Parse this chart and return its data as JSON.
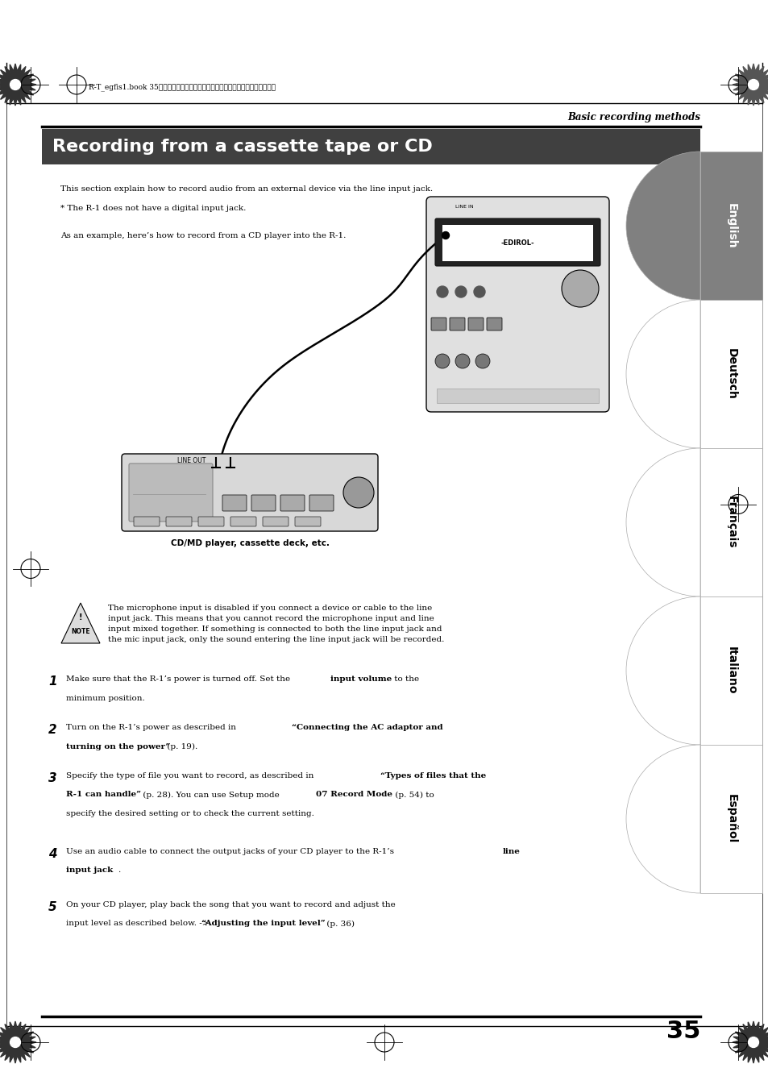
{
  "bg_color": "#ffffff",
  "page_width": 9.54,
  "page_height": 13.51,
  "header_text": "R-T_egfis1.book 35ページ　２００５年１１月１１日　金曜日　午後５時１３分",
  "section_label": "Basic recording methods",
  "title": "Recording from a cassette tape or CD",
  "title_bg": "#404040",
  "title_color": "#ffffff",
  "body_intro_1": "This section explain how to record audio from an external device via the line input jack.",
  "body_intro_2": "* The R-1 does not have a digital input jack.",
  "body_intro_3": "As an example, here’s how to record from a CD player into the R-1.",
  "caption_cd": "CD/MD player, cassette deck, etc.",
  "note_text": "The microphone input is disabled if you connect a device or cable to the line\ninput jack. This means that you cannot record the microphone input and line\ninput mixed together. If something is connected to both the line input jack and\nthe mic input jack, only the sound entering the line input jack will be recorded.",
  "step1_num": "1",
  "step2_num": "2",
  "step3_num": "3",
  "step4_num": "4",
  "step5_num": "5",
  "page_num": "35",
  "lang_tabs": [
    "English",
    "Deutsch",
    "Français",
    "Italiano",
    "Español"
  ],
  "lang_tab_active": 0,
  "lang_tab_active_color": "#808080",
  "lang_tab_inactive_color": "#ffffff",
  "line_in_label": "LINE IN",
  "line_out_label": "LINE OUT"
}
